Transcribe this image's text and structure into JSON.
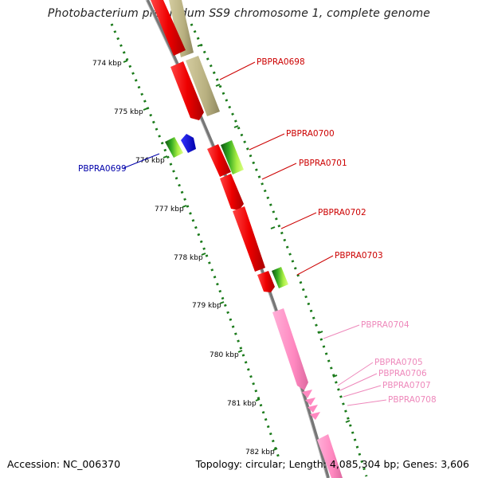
{
  "title": "Photobacterium profundum SS9 chromosome 1, complete genome",
  "footer": {
    "accession": "Accession: NC_006370",
    "topology": "Topology: circular; Length: 4,085,304 bp; Genes: 3,606"
  },
  "ticks": [
    "774 kbp",
    "775 kbp",
    "776 kbp",
    "777 kbp",
    "778 kbp",
    "779 kbp",
    "780 kbp",
    "781 kbp",
    "782 kbp"
  ],
  "gene_labels": [
    {
      "text": "PBPRA0698",
      "color": "#cc0000"
    },
    {
      "text": "PBPRA0700",
      "color": "#cc0000"
    },
    {
      "text": "PBPRA0701",
      "color": "#cc0000"
    },
    {
      "text": "PBPRA0702",
      "color": "#cc0000"
    },
    {
      "text": "PBPRA0703",
      "color": "#cc0000"
    },
    {
      "text": "PBPRA0699",
      "color": "#0000aa"
    },
    {
      "text": "PBPRA0704",
      "color": "#ee88bb"
    },
    {
      "text": "PBPRA0705",
      "color": "#ee88bb"
    },
    {
      "text": "PBPRA0706",
      "color": "#ee88bb"
    },
    {
      "text": "PBPRA0707",
      "color": "#ee88bb"
    },
    {
      "text": "PBPRA0708",
      "color": "#ee88bb"
    }
  ],
  "colors": {
    "forward_cds": "#ee1111",
    "reverse_cds": "#ff88c0",
    "misc_feature": "#b8b080",
    "blue_feature": "#0000ee",
    "gc_skew_dots": "#1a7a1a",
    "backbone": "#888888"
  }
}
